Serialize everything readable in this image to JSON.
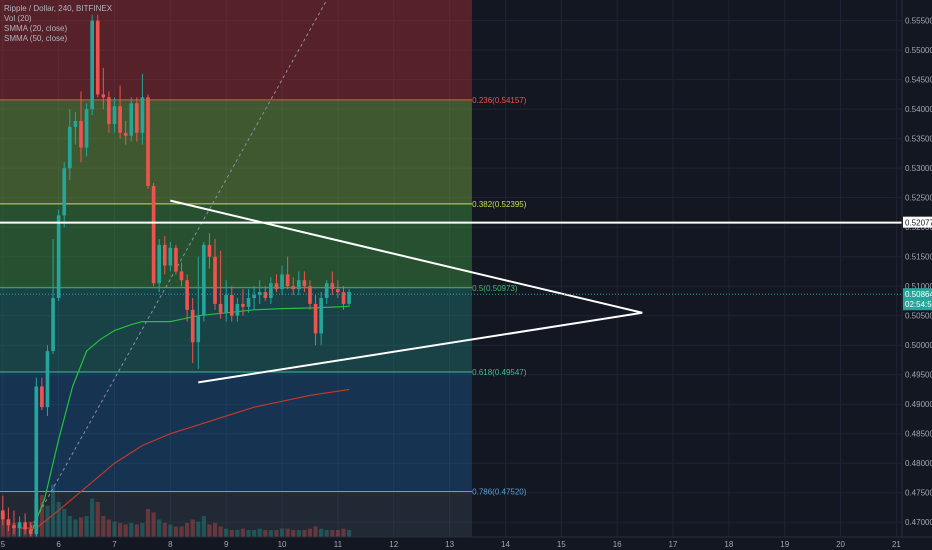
{
  "legend": {
    "symbol": "Ripple / Dollar, 240, BITFINEX",
    "indicators": [
      "Vol (20)",
      "SMMA (20, close)",
      "SMMA (50, close)"
    ]
  },
  "colors": {
    "up": "#26a69a",
    "down": "#ef5350",
    "smma20": "#26c13c",
    "smma50": "#c0392b",
    "background": "#131722",
    "trendline": "#ffffff"
  },
  "chart_data": {
    "type": "candlestick",
    "symbol": "XRP/USD",
    "interval": "240",
    "exchange": "BITFINEX",
    "y_range": [
      0.4675,
      0.5585
    ],
    "x_range": [
      4.95,
      21.1
    ],
    "x_ticks": [
      "5",
      "6",
      "7",
      "8",
      "9",
      "10",
      "11",
      "12",
      "13",
      "14",
      "15",
      "16",
      "17",
      "18",
      "19",
      "20",
      "21"
    ],
    "y_ticks": [
      "0.55500",
      "0.55000",
      "0.54500",
      "0.54000",
      "0.53500",
      "0.53000",
      "0.52500",
      "0.52000",
      "0.51500",
      "0.51000",
      "0.50500",
      "0.50000",
      "0.49500",
      "0.49000",
      "0.48500",
      "0.48000",
      "0.47500",
      "0.47000"
    ],
    "candles": [
      {
        "t": 5.0,
        "o": 0.472,
        "h": 0.4745,
        "l": 0.4695,
        "c": 0.4705
      },
      {
        "t": 5.1,
        "o": 0.4705,
        "h": 0.4725,
        "l": 0.4685,
        "c": 0.4695
      },
      {
        "t": 5.2,
        "o": 0.4695,
        "h": 0.472,
        "l": 0.468,
        "c": 0.469
      },
      {
        "t": 5.3,
        "o": 0.469,
        "h": 0.471,
        "l": 0.4675,
        "c": 0.47
      },
      {
        "t": 5.4,
        "o": 0.47,
        "h": 0.4715,
        "l": 0.468,
        "c": 0.4688
      },
      {
        "t": 5.5,
        "o": 0.4688,
        "h": 0.47,
        "l": 0.4675,
        "c": 0.468
      },
      {
        "t": 5.6,
        "o": 0.468,
        "h": 0.4945,
        "l": 0.4675,
        "c": 0.493
      },
      {
        "t": 5.7,
        "o": 0.493,
        "h": 0.4945,
        "l": 0.489,
        "c": 0.4895
      },
      {
        "t": 5.8,
        "o": 0.4895,
        "h": 0.5,
        "l": 0.488,
        "c": 0.499
      },
      {
        "t": 5.9,
        "o": 0.499,
        "h": 0.518,
        "l": 0.4985,
        "c": 0.508
      },
      {
        "t": 6.0,
        "o": 0.508,
        "h": 0.523,
        "l": 0.5075,
        "c": 0.522
      },
      {
        "t": 6.1,
        "o": 0.522,
        "h": 0.531,
        "l": 0.52,
        "c": 0.53
      },
      {
        "t": 6.2,
        "o": 0.53,
        "h": 0.54,
        "l": 0.528,
        "c": 0.537
      },
      {
        "t": 6.3,
        "o": 0.537,
        "h": 0.5395,
        "l": 0.534,
        "c": 0.538
      },
      {
        "t": 6.4,
        "o": 0.538,
        "h": 0.543,
        "l": 0.531,
        "c": 0.5335
      },
      {
        "t": 6.5,
        "o": 0.5335,
        "h": 0.541,
        "l": 0.532,
        "c": 0.54
      },
      {
        "t": 6.6,
        "o": 0.54,
        "h": 0.556,
        "l": 0.539,
        "c": 0.555
      },
      {
        "t": 6.7,
        "o": 0.555,
        "h": 0.556,
        "l": 0.542,
        "c": 0.5425
      },
      {
        "t": 6.8,
        "o": 0.5425,
        "h": 0.547,
        "l": 0.54,
        "c": 0.542
      },
      {
        "t": 6.9,
        "o": 0.542,
        "h": 0.543,
        "l": 0.536,
        "c": 0.5375
      },
      {
        "t": 7.0,
        "o": 0.5375,
        "h": 0.542,
        "l": 0.536,
        "c": 0.5405
      },
      {
        "t": 7.1,
        "o": 0.5405,
        "h": 0.544,
        "l": 0.535,
        "c": 0.536
      },
      {
        "t": 7.2,
        "o": 0.536,
        "h": 0.538,
        "l": 0.534,
        "c": 0.5355
      },
      {
        "t": 7.3,
        "o": 0.5355,
        "h": 0.542,
        "l": 0.5345,
        "c": 0.541
      },
      {
        "t": 7.4,
        "o": 0.541,
        "h": 0.542,
        "l": 0.5345,
        "c": 0.536
      },
      {
        "t": 7.5,
        "o": 0.536,
        "h": 0.546,
        "l": 0.534,
        "c": 0.542
      },
      {
        "t": 7.6,
        "o": 0.542,
        "h": 0.5425,
        "l": 0.5265,
        "c": 0.527
      },
      {
        "t": 7.7,
        "o": 0.527,
        "h": 0.5275,
        "l": 0.51,
        "c": 0.5105
      },
      {
        "t": 7.8,
        "o": 0.5105,
        "h": 0.518,
        "l": 0.509,
        "c": 0.517
      },
      {
        "t": 7.9,
        "o": 0.517,
        "h": 0.5185,
        "l": 0.512,
        "c": 0.5135
      },
      {
        "t": 8.0,
        "o": 0.5135,
        "h": 0.5175,
        "l": 0.5125,
        "c": 0.5165
      },
      {
        "t": 8.1,
        "o": 0.5165,
        "h": 0.517,
        "l": 0.512,
        "c": 0.5125
      },
      {
        "t": 8.2,
        "o": 0.5125,
        "h": 0.514,
        "l": 0.51,
        "c": 0.511
      },
      {
        "t": 8.3,
        "o": 0.511,
        "h": 0.512,
        "l": 0.504,
        "c": 0.506
      },
      {
        "t": 8.4,
        "o": 0.506,
        "h": 0.508,
        "l": 0.497,
        "c": 0.5005
      },
      {
        "t": 8.5,
        "o": 0.5005,
        "h": 0.515,
        "l": 0.496,
        "c": 0.505
      },
      {
        "t": 8.6,
        "o": 0.505,
        "h": 0.5175,
        "l": 0.504,
        "c": 0.517
      },
      {
        "t": 8.7,
        "o": 0.517,
        "h": 0.519,
        "l": 0.513,
        "c": 0.515
      },
      {
        "t": 8.8,
        "o": 0.515,
        "h": 0.518,
        "l": 0.506,
        "c": 0.507
      },
      {
        "t": 8.9,
        "o": 0.507,
        "h": 0.516,
        "l": 0.5045,
        "c": 0.5055
      },
      {
        "t": 9.0,
        "o": 0.5055,
        "h": 0.511,
        "l": 0.504,
        "c": 0.5085
      },
      {
        "t": 9.1,
        "o": 0.5085,
        "h": 0.51,
        "l": 0.504,
        "c": 0.505
      },
      {
        "t": 9.2,
        "o": 0.505,
        "h": 0.508,
        "l": 0.504,
        "c": 0.507
      },
      {
        "t": 9.3,
        "o": 0.507,
        "h": 0.5095,
        "l": 0.505,
        "c": 0.5065
      },
      {
        "t": 9.4,
        "o": 0.5065,
        "h": 0.5095,
        "l": 0.5055,
        "c": 0.508
      },
      {
        "t": 9.5,
        "o": 0.508,
        "h": 0.51,
        "l": 0.506,
        "c": 0.5085
      },
      {
        "t": 9.6,
        "o": 0.5085,
        "h": 0.511,
        "l": 0.507,
        "c": 0.509
      },
      {
        "t": 9.7,
        "o": 0.509,
        "h": 0.51,
        "l": 0.5075,
        "c": 0.508
      },
      {
        "t": 9.8,
        "o": 0.508,
        "h": 0.5115,
        "l": 0.507,
        "c": 0.5105
      },
      {
        "t": 9.9,
        "o": 0.5105,
        "h": 0.512,
        "l": 0.509,
        "c": 0.5095
      },
      {
        "t": 10.0,
        "o": 0.5095,
        "h": 0.5135,
        "l": 0.5085,
        "c": 0.512
      },
      {
        "t": 10.1,
        "o": 0.512,
        "h": 0.515,
        "l": 0.5095,
        "c": 0.51
      },
      {
        "t": 10.2,
        "o": 0.51,
        "h": 0.5115,
        "l": 0.5085,
        "c": 0.5095
      },
      {
        "t": 10.3,
        "o": 0.5095,
        "h": 0.5125,
        "l": 0.5085,
        "c": 0.511
      },
      {
        "t": 10.4,
        "o": 0.511,
        "h": 0.5125,
        "l": 0.509,
        "c": 0.51
      },
      {
        "t": 10.5,
        "o": 0.51,
        "h": 0.511,
        "l": 0.506,
        "c": 0.507
      },
      {
        "t": 10.6,
        "o": 0.507,
        "h": 0.5085,
        "l": 0.5,
        "c": 0.502
      },
      {
        "t": 10.7,
        "o": 0.502,
        "h": 0.509,
        "l": 0.5,
        "c": 0.508
      },
      {
        "t": 10.8,
        "o": 0.508,
        "h": 0.511,
        "l": 0.507,
        "c": 0.5105
      },
      {
        "t": 10.9,
        "o": 0.5105,
        "h": 0.5125,
        "l": 0.5085,
        "c": 0.5095
      },
      {
        "t": 11.0,
        "o": 0.5095,
        "h": 0.511,
        "l": 0.508,
        "c": 0.509
      },
      {
        "t": 11.1,
        "o": 0.509,
        "h": 0.51,
        "l": 0.506,
        "c": 0.507
      },
      {
        "t": 11.2,
        "o": 0.507,
        "h": 0.5095,
        "l": 0.5065,
        "c": 0.509
      }
    ],
    "smma20": [
      [
        5.5,
        0.468
      ],
      [
        5.75,
        0.474
      ],
      [
        6.0,
        0.484
      ],
      [
        6.25,
        0.493
      ],
      [
        6.5,
        0.499
      ],
      [
        6.75,
        0.501
      ],
      [
        7.0,
        0.5025
      ],
      [
        7.3,
        0.5035
      ],
      [
        7.5,
        0.504
      ],
      [
        7.75,
        0.504
      ],
      [
        8.0,
        0.504
      ],
      [
        8.25,
        0.5045
      ],
      [
        8.5,
        0.505
      ],
      [
        9.0,
        0.5055
      ],
      [
        9.5,
        0.506
      ],
      [
        10.0,
        0.5062
      ],
      [
        10.5,
        0.5063
      ],
      [
        11.0,
        0.5065
      ],
      [
        11.2,
        0.5066
      ]
    ],
    "smma50": [
      [
        5.3,
        0.469
      ],
      [
        5.6,
        0.469
      ],
      [
        6.0,
        0.472
      ],
      [
        6.5,
        0.476
      ],
      [
        7.0,
        0.48
      ],
      [
        7.5,
        0.483
      ],
      [
        8.0,
        0.485
      ],
      [
        8.5,
        0.4865
      ],
      [
        9.0,
        0.488
      ],
      [
        9.5,
        0.4895
      ],
      [
        10.0,
        0.4905
      ],
      [
        10.5,
        0.4915
      ],
      [
        11.0,
        0.4922
      ],
      [
        11.2,
        0.4925
      ]
    ],
    "fib_levels": [
      {
        "label": "0.236(0.54157)",
        "value": 0.54157,
        "color": "#ef5350"
      },
      {
        "label": "0.382(0.52395)",
        "value": 0.52395,
        "color": "#c6e047"
      },
      {
        "label": "0.5(0.50973)",
        "value": 0.50973,
        "color": "#4db36b"
      },
      {
        "label": "0.618(0.49547)",
        "value": 0.49547,
        "color": "#3fbf8f"
      },
      {
        "label": "0.786(0.47520)",
        "value": 0.4752,
        "color": "#5aa1d6"
      }
    ],
    "fib_zones": [
      {
        "from": 0.5585,
        "to": 0.54157,
        "color": "#e53935",
        "opacity": 0.32
      },
      {
        "from": 0.54157,
        "to": 0.52395,
        "color": "#7cb342",
        "opacity": 0.42
      },
      {
        "from": 0.52395,
        "to": 0.50973,
        "color": "#43a047",
        "opacity": 0.42
      },
      {
        "from": 0.50973,
        "to": 0.49547,
        "color": "#26a69a",
        "opacity": 0.3
      },
      {
        "from": 0.49547,
        "to": 0.4752,
        "color": "#1e88e5",
        "opacity": 0.25
      },
      {
        "from": 0.4752,
        "to": 0.4675,
        "color": "#607d8b",
        "opacity": 0.18
      }
    ],
    "fib_x_end": 13.4,
    "horizontal_line": {
      "value": 0.52077,
      "label": "0.52077"
    },
    "triangle_upper": [
      [
        8.0,
        0.5245
      ],
      [
        16.45,
        0.5055
      ]
    ],
    "triangle_lower": [
      [
        8.5,
        0.4937
      ],
      [
        16.45,
        0.5055
      ]
    ],
    "diagonal": [
      [
        5.5,
        0.469
      ],
      [
        10.8,
        0.5585
      ]
    ],
    "last_price": {
      "value": 0.50864,
      "label": "0.50864"
    },
    "countdown": {
      "label": "02:54:58"
    },
    "volume": [
      [
        5.0,
        0.35
      ],
      [
        5.1,
        0.25
      ],
      [
        5.2,
        0.2
      ],
      [
        5.3,
        0.18
      ],
      [
        5.4,
        0.15
      ],
      [
        5.5,
        0.22
      ],
      [
        5.6,
        0.55
      ],
      [
        5.7,
        0.6
      ],
      [
        5.8,
        0.45
      ],
      [
        5.9,
        0.75
      ],
      [
        6.0,
        0.5
      ],
      [
        6.1,
        0.4
      ],
      [
        6.2,
        0.3
      ],
      [
        6.3,
        0.25
      ],
      [
        6.4,
        0.28
      ],
      [
        6.5,
        0.3
      ],
      [
        6.6,
        0.55
      ],
      [
        6.7,
        0.5
      ],
      [
        6.8,
        0.3
      ],
      [
        6.9,
        0.25
      ],
      [
        7.0,
        0.22
      ],
      [
        7.1,
        0.2
      ],
      [
        7.2,
        0.18
      ],
      [
        7.3,
        0.2
      ],
      [
        7.4,
        0.18
      ],
      [
        7.5,
        0.2
      ],
      [
        7.6,
        0.4
      ],
      [
        7.7,
        0.35
      ],
      [
        7.8,
        0.25
      ],
      [
        7.9,
        0.2
      ],
      [
        8.0,
        0.18
      ],
      [
        8.1,
        0.15
      ],
      [
        8.2,
        0.15
      ],
      [
        8.3,
        0.2
      ],
      [
        8.4,
        0.25
      ],
      [
        8.5,
        0.22
      ],
      [
        8.6,
        0.3
      ],
      [
        8.7,
        0.18
      ],
      [
        8.8,
        0.2
      ],
      [
        8.9,
        0.15
      ],
      [
        9.0,
        0.12
      ],
      [
        9.1,
        0.1
      ],
      [
        9.2,
        0.1
      ],
      [
        9.3,
        0.12
      ],
      [
        9.4,
        0.1
      ],
      [
        9.5,
        0.1
      ],
      [
        9.6,
        0.12
      ],
      [
        9.7,
        0.1
      ],
      [
        9.8,
        0.1
      ],
      [
        9.9,
        0.1
      ],
      [
        10.0,
        0.12
      ],
      [
        10.1,
        0.12
      ],
      [
        10.2,
        0.1
      ],
      [
        10.3,
        0.1
      ],
      [
        10.4,
        0.1
      ],
      [
        10.5,
        0.12
      ],
      [
        10.6,
        0.15
      ],
      [
        10.7,
        0.12
      ],
      [
        10.8,
        0.1
      ],
      [
        10.9,
        0.1
      ],
      [
        11.0,
        0.1
      ],
      [
        11.1,
        0.12
      ],
      [
        11.2,
        0.1
      ]
    ]
  }
}
